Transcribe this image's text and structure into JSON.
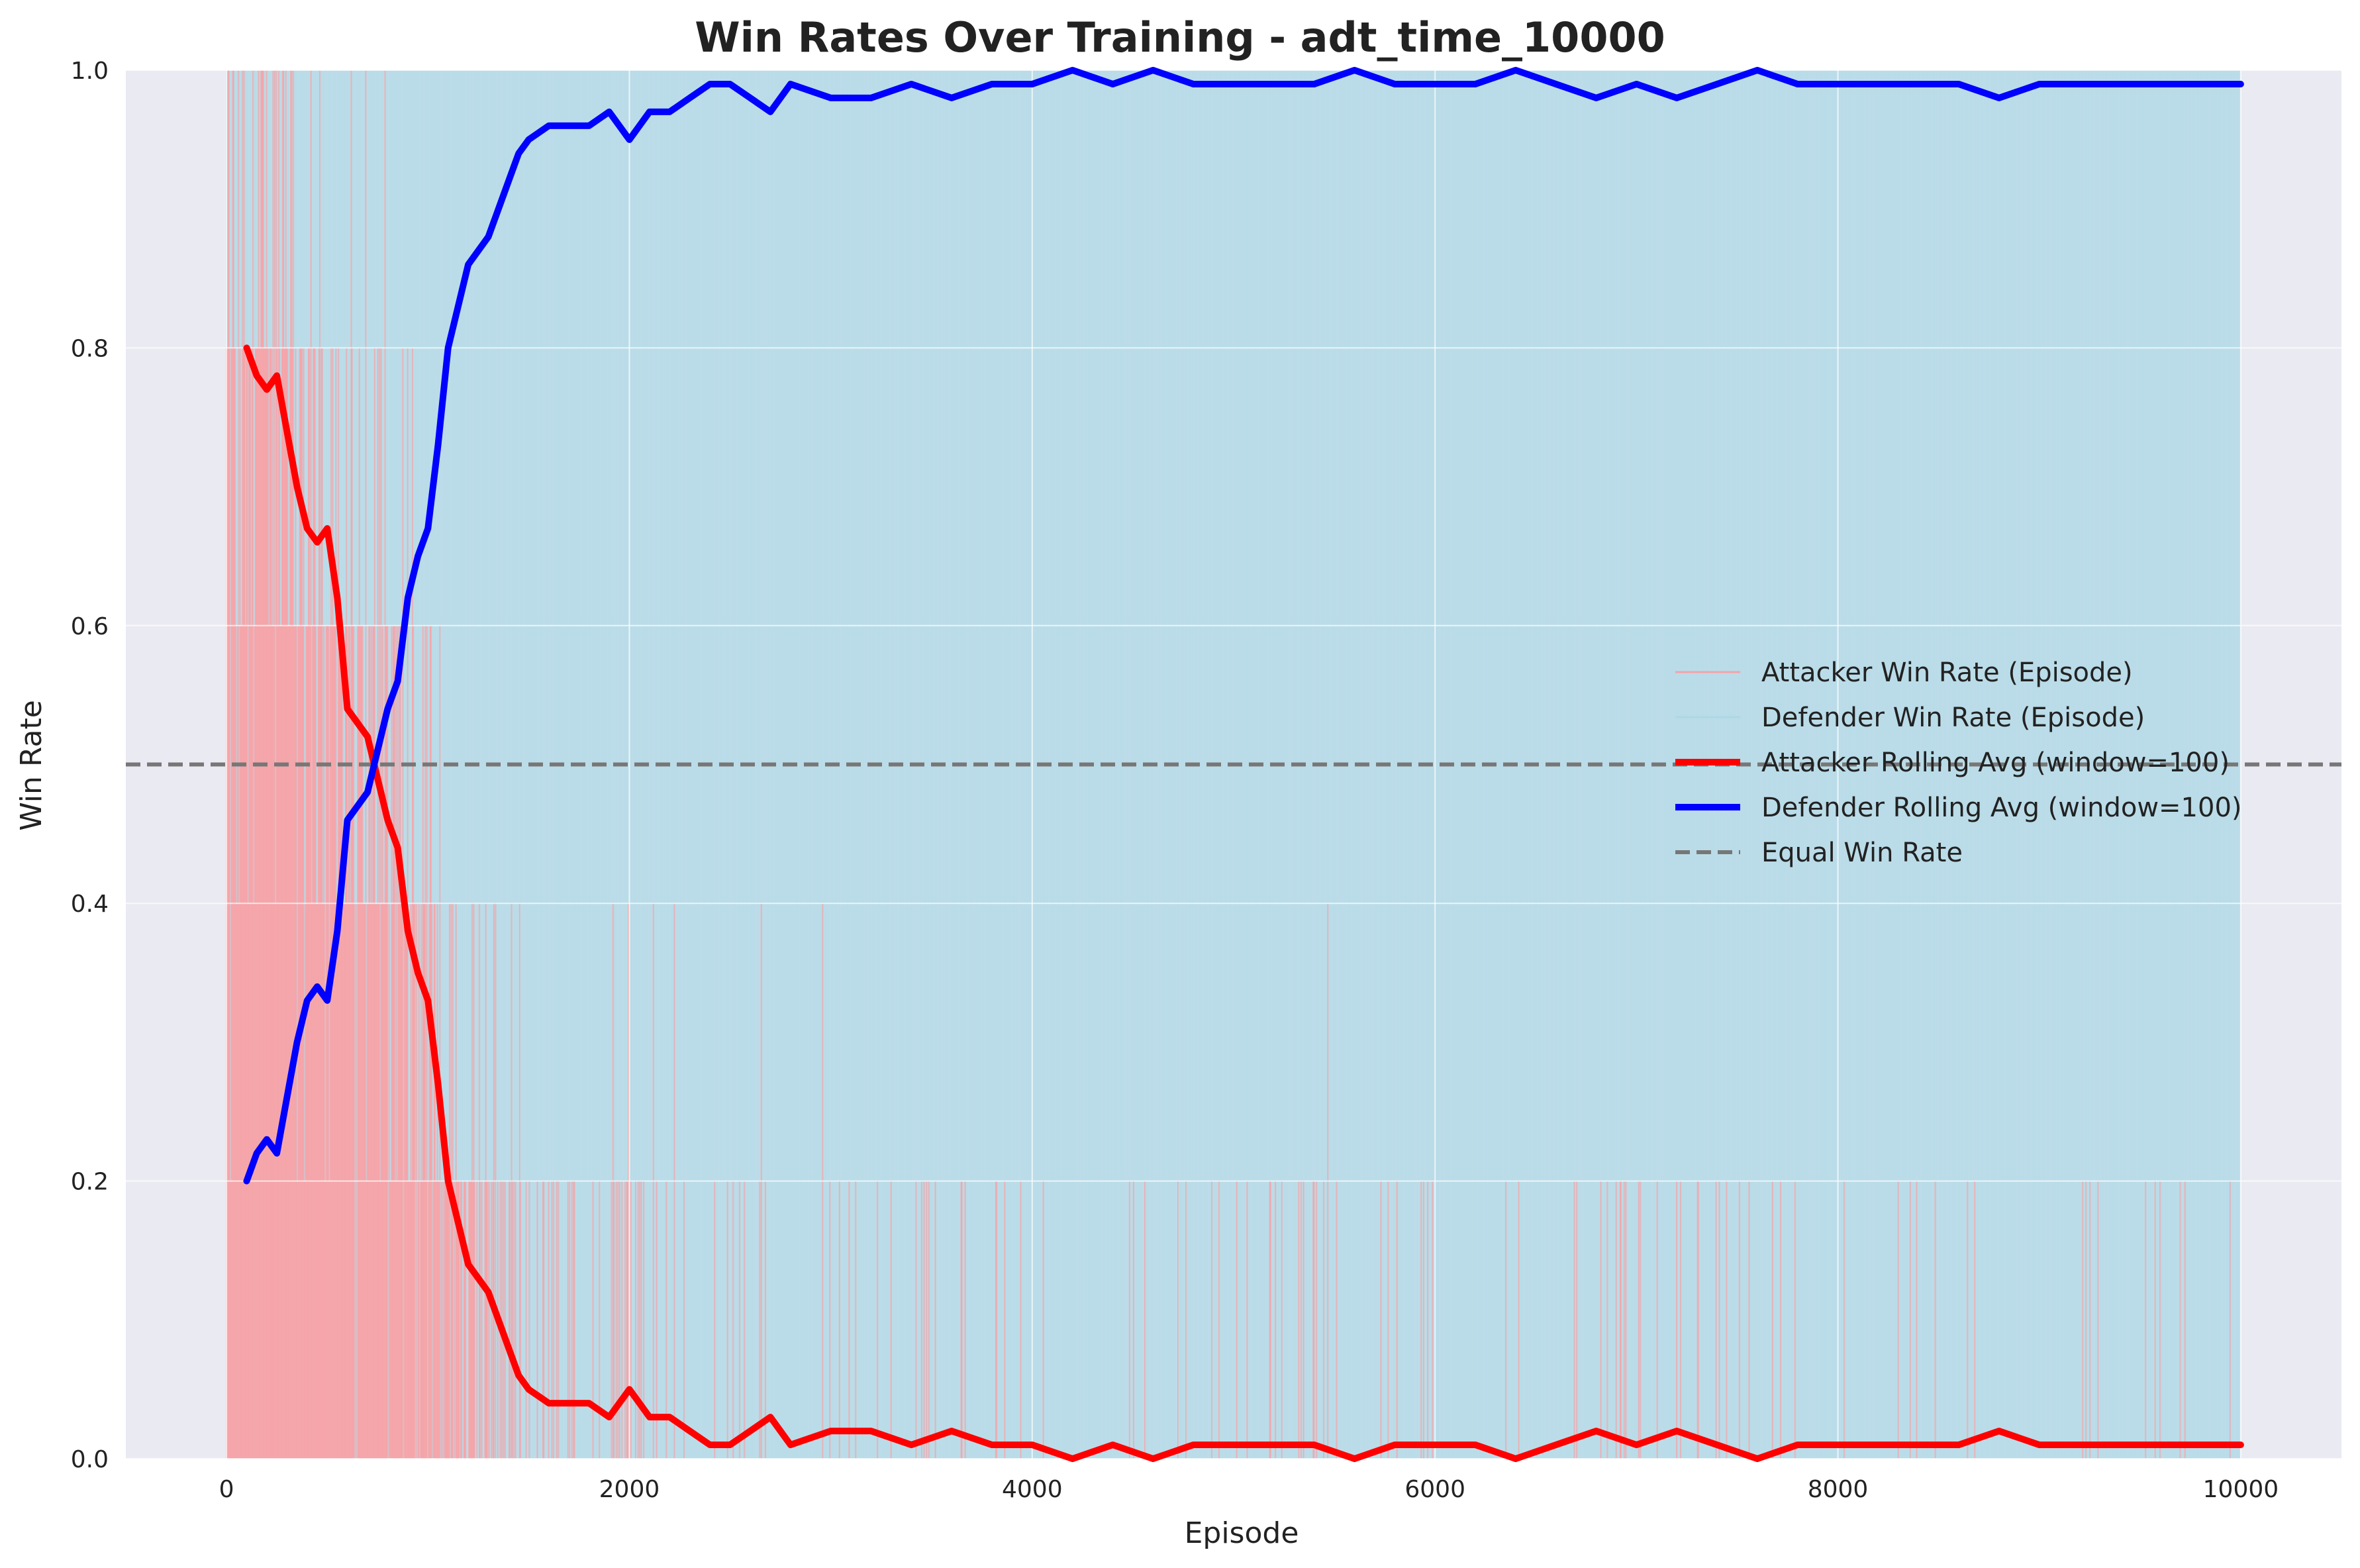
{
  "chart_data": {
    "type": "line",
    "title": "Win Rates Over Training - adt_time_10000",
    "xlabel": "Episode",
    "ylabel": "Win Rate",
    "xlim": [
      -500,
      10500
    ],
    "ylim": [
      0,
      1.0
    ],
    "xticks": [
      0,
      2000,
      4000,
      6000,
      8000,
      10000
    ],
    "xtick_labels": [
      "0",
      "2000",
      "4000",
      "6000",
      "8000",
      "10000"
    ],
    "yticks": [
      0.0,
      0.2,
      0.4,
      0.6,
      0.8,
      1.0
    ],
    "ytick_labels": [
      "0.0",
      "0.2",
      "0.4",
      "0.6",
      "0.8",
      "1.0"
    ],
    "grid": true,
    "legend_position": "center-right",
    "colors": {
      "background": "#eaeaf2",
      "grid": "#ffffff",
      "attacker_episode": "#f4a3a8",
      "defender_episode": "#add8e6",
      "attacker_rolling": "#ff0000",
      "defender_rolling": "#0000ff",
      "equal_line": "#777777"
    },
    "reference_line": {
      "name": "Equal Win Rate",
      "y": 0.5,
      "style": "dashed"
    },
    "episode_series": {
      "episodes": 10000,
      "values_per_episode": [
        0,
        0.2,
        0.4,
        0.6,
        0.8,
        1.0
      ],
      "attacker_name": "Attacker Win Rate (Episode)",
      "defender_name": "Defender Win Rate (Episode)"
    },
    "series": [
      {
        "name": "Attacker Rolling Avg (window=100)",
        "color": "#ff0000",
        "x": [
          100,
          150,
          200,
          250,
          300,
          350,
          400,
          450,
          500,
          550,
          600,
          650,
          700,
          750,
          800,
          850,
          900,
          950,
          1000,
          1050,
          1100,
          1150,
          1200,
          1250,
          1300,
          1350,
          1400,
          1450,
          1500,
          1600,
          1700,
          1800,
          1900,
          2000,
          2050,
          2100,
          2200,
          2300,
          2400,
          2500,
          2600,
          2700,
          2800,
          3000,
          3200,
          3400,
          3600,
          3800,
          4000,
          4200,
          4400,
          4600,
          4800,
          5000,
          5200,
          5400,
          5600,
          5800,
          6000,
          6200,
          6400,
          6600,
          6800,
          7000,
          7200,
          7400,
          7600,
          7800,
          8000,
          8200,
          8400,
          8600,
          8800,
          9000,
          9200,
          9400,
          9600,
          9800,
          10000
        ],
        "values": [
          0.8,
          0.78,
          0.77,
          0.78,
          0.74,
          0.7,
          0.67,
          0.66,
          0.67,
          0.62,
          0.54,
          0.53,
          0.52,
          0.49,
          0.46,
          0.44,
          0.38,
          0.35,
          0.33,
          0.27,
          0.2,
          0.17,
          0.14,
          0.13,
          0.12,
          0.1,
          0.08,
          0.06,
          0.05,
          0.04,
          0.04,
          0.04,
          0.03,
          0.05,
          0.04,
          0.03,
          0.03,
          0.02,
          0.01,
          0.01,
          0.02,
          0.03,
          0.01,
          0.02,
          0.02,
          0.01,
          0.02,
          0.01,
          0.01,
          0.0,
          0.01,
          0.0,
          0.01,
          0.01,
          0.01,
          0.01,
          0.0,
          0.01,
          0.01,
          0.01,
          0.0,
          0.01,
          0.02,
          0.01,
          0.02,
          0.01,
          0.0,
          0.01,
          0.01,
          0.01,
          0.01,
          0.01,
          0.02,
          0.01,
          0.01,
          0.01,
          0.01,
          0.01,
          0.01
        ]
      },
      {
        "name": "Defender Rolling Avg (window=100)",
        "color": "#0000ff",
        "x": [
          100,
          150,
          200,
          250,
          300,
          350,
          400,
          450,
          500,
          550,
          600,
          650,
          700,
          750,
          800,
          850,
          900,
          950,
          1000,
          1050,
          1100,
          1150,
          1200,
          1250,
          1300,
          1350,
          1400,
          1450,
          1500,
          1600,
          1700,
          1800,
          1900,
          2000,
          2050,
          2100,
          2200,
          2300,
          2400,
          2500,
          2600,
          2700,
          2800,
          3000,
          3200,
          3400,
          3600,
          3800,
          4000,
          4200,
          4400,
          4600,
          4800,
          5000,
          5200,
          5400,
          5600,
          5800,
          6000,
          6200,
          6400,
          6600,
          6800,
          7000,
          7200,
          7400,
          7600,
          7800,
          8000,
          8200,
          8400,
          8600,
          8800,
          9000,
          9200,
          9400,
          9600,
          9800,
          10000
        ],
        "values": [
          0.2,
          0.22,
          0.23,
          0.22,
          0.26,
          0.3,
          0.33,
          0.34,
          0.33,
          0.38,
          0.46,
          0.47,
          0.48,
          0.51,
          0.54,
          0.56,
          0.62,
          0.65,
          0.67,
          0.73,
          0.8,
          0.83,
          0.86,
          0.87,
          0.88,
          0.9,
          0.92,
          0.94,
          0.95,
          0.96,
          0.96,
          0.96,
          0.97,
          0.95,
          0.96,
          0.97,
          0.97,
          0.98,
          0.99,
          0.99,
          0.98,
          0.97,
          0.99,
          0.98,
          0.98,
          0.99,
          0.98,
          0.99,
          0.99,
          1.0,
          0.99,
          1.0,
          0.99,
          0.99,
          0.99,
          0.99,
          1.0,
          0.99,
          0.99,
          0.99,
          1.0,
          0.99,
          0.98,
          0.99,
          0.98,
          0.99,
          1.0,
          0.99,
          0.99,
          0.99,
          0.99,
          0.99,
          0.98,
          0.99,
          0.99,
          0.99,
          0.99,
          0.99,
          0.99
        ]
      }
    ],
    "legend": [
      {
        "label": "Attacker Win Rate (Episode)",
        "color": "#f4a3a8",
        "style": "thin"
      },
      {
        "label": "Defender Win Rate (Episode)",
        "color": "#add8e6",
        "style": "thin"
      },
      {
        "label": "Attacker Rolling Avg (window=100)",
        "color": "#ff0000",
        "style": "thick"
      },
      {
        "label": "Defender Rolling Avg (window=100)",
        "color": "#0000ff",
        "style": "thick"
      },
      {
        "label": "Equal Win Rate",
        "color": "#777777",
        "style": "dashed"
      }
    ]
  }
}
